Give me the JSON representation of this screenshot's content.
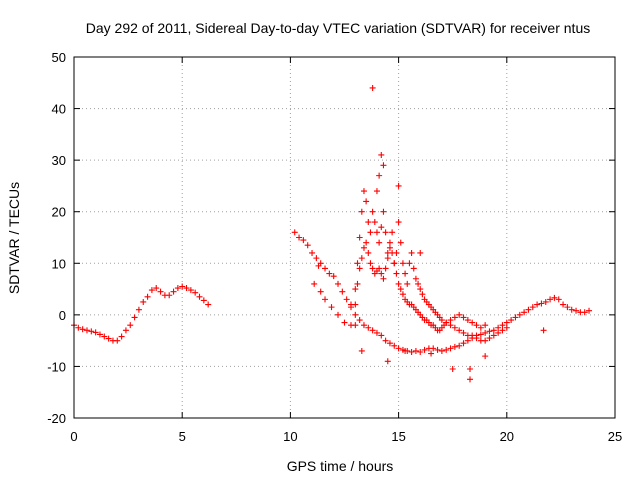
{
  "chart_data": {
    "type": "scatter",
    "title": "Day 292 of 2011, Sidereal Day-to-day VTEC variation (SDTVAR) for receiver ntus",
    "xlabel": "GPS time / hours",
    "ylabel": "SDTVAR / TECUs",
    "xlim": [
      0,
      25
    ],
    "ylim": [
      -20,
      50
    ],
    "xticks": [
      "0",
      "5",
      "10",
      "15",
      "20",
      "25"
    ],
    "yticks": [
      "-20",
      "-10",
      "0",
      "10",
      "20",
      "30",
      "40",
      "50"
    ],
    "grid": true,
    "marker": "+",
    "marker_color": "#ff0000",
    "series": [
      {
        "name": "SDTVAR",
        "x": [
          0.0,
          0.2,
          0.4,
          0.6,
          0.8,
          1.0,
          1.2,
          1.4,
          1.6,
          1.8,
          2.0,
          2.2,
          2.4,
          2.6,
          2.8,
          3.0,
          3.2,
          3.4,
          3.6,
          3.8,
          4.0,
          4.2,
          4.4,
          4.6,
          4.8,
          5.0,
          5.2,
          5.4,
          5.6,
          5.8,
          6.0,
          6.2,
          10.2,
          10.4,
          10.6,
          10.8,
          11.0,
          11.2,
          11.4,
          11.6,
          11.8,
          12.0,
          12.2,
          12.4,
          12.6,
          12.8,
          13.0,
          13.2,
          13.4,
          13.6,
          13.8,
          14.0,
          14.2,
          14.4,
          14.6,
          14.8,
          15.0,
          15.2,
          15.4,
          15.6,
          15.8,
          16.0,
          16.2,
          16.4,
          16.6,
          16.8,
          17.0,
          17.2,
          17.4,
          17.6,
          17.8,
          18.0,
          18.2,
          18.4,
          18.6,
          18.8,
          19.0,
          19.2,
          19.4,
          19.6,
          19.8,
          20.0,
          20.2,
          20.4,
          20.6,
          20.8,
          21.0,
          21.2,
          21.4,
          21.6,
          21.8,
          22.0,
          22.2,
          22.4,
          22.6,
          22.8,
          23.0,
          23.2,
          23.4,
          23.6,
          23.8,
          11.1,
          11.4,
          11.6,
          11.9,
          12.2,
          12.5,
          12.8,
          13.0,
          13.1,
          13.2,
          13.3,
          13.4,
          13.5,
          13.6,
          13.7,
          13.8,
          13.9,
          14.0,
          14.1,
          14.2,
          14.3,
          14.4,
          14.5,
          14.6,
          14.7,
          14.8,
          14.9,
          15.0,
          15.1,
          15.2,
          15.3,
          15.4,
          15.5,
          15.6,
          15.7,
          15.8,
          15.9,
          16.0,
          16.1,
          16.2,
          16.3,
          16.4,
          16.5,
          16.6,
          16.7,
          16.8,
          16.9,
          17.0,
          17.1,
          17.2,
          17.4,
          17.6,
          17.8,
          18.0,
          18.2,
          18.4,
          18.6,
          18.8,
          19.0,
          12.8,
          13.0,
          13.1,
          13.2,
          13.3,
          13.4,
          13.5,
          13.6,
          13.7,
          13.8,
          13.9,
          14.0,
          14.1,
          14.2,
          14.3,
          14.4,
          14.5,
          14.6,
          14.7,
          14.8,
          14.9,
          15.0,
          15.1,
          15.2,
          15.3,
          15.4,
          15.5,
          15.6,
          15.7,
          15.8,
          15.9,
          16.0,
          16.1,
          16.2,
          16.3,
          16.4,
          16.5,
          16.6,
          16.7,
          16.8,
          16.9,
          17.0,
          17.2,
          17.4,
          17.6,
          17.8,
          18.0,
          18.2,
          18.4,
          18.6,
          18.8,
          19.0,
          19.2,
          19.4,
          19.6,
          19.8,
          20.0,
          13.8,
          14.2,
          14.3,
          14.1,
          11.3,
          13.3,
          13.0,
          14.5,
          16.5,
          17.5,
          18.3,
          18.3,
          19.0,
          21.7,
          15.3,
          15.0,
          14.0,
          16.0
        ],
        "y": [
          -2.0,
          -2.5,
          -2.8,
          -3.0,
          -3.2,
          -3.4,
          -3.8,
          -4.2,
          -4.6,
          -5.0,
          -5.0,
          -4.2,
          -3.0,
          -2.0,
          -0.5,
          1.0,
          2.5,
          3.5,
          4.8,
          5.2,
          4.5,
          3.8,
          3.8,
          4.5,
          5.2,
          5.5,
          5.2,
          4.8,
          4.3,
          3.5,
          2.8,
          2.0,
          16.0,
          15.0,
          14.5,
          13.5,
          12.0,
          11.0,
          10.0,
          9.0,
          8.0,
          7.5,
          6.0,
          4.5,
          3.0,
          1.5,
          0.0,
          -1.0,
          -2.0,
          -2.5,
          -3.0,
          -3.5,
          -4.0,
          -5.0,
          -5.5,
          -6.0,
          -6.5,
          -6.8,
          -7.0,
          -7.2,
          -7.0,
          -7.2,
          -6.8,
          -6.5,
          -6.5,
          -6.8,
          -7.0,
          -6.8,
          -6.5,
          -6.2,
          -6.0,
          -5.5,
          -5.0,
          -4.5,
          -4.0,
          -3.8,
          -3.5,
          -3.2,
          -3.0,
          -2.5,
          -2.0,
          -1.5,
          -1.0,
          -0.5,
          0.0,
          0.5,
          1.0,
          1.5,
          2.0,
          2.2,
          2.5,
          3.0,
          3.3,
          3.0,
          2.0,
          1.5,
          1.0,
          0.8,
          0.5,
          0.5,
          0.8,
          6.0,
          4.5,
          3.0,
          1.5,
          0.0,
          -1.5,
          -2.0,
          2.0,
          6.0,
          9.0,
          11.0,
          13.0,
          14.0,
          12.0,
          10.0,
          9.0,
          8.0,
          8.5,
          9.0,
          8.0,
          7.0,
          9.0,
          11.0,
          13.0,
          12.0,
          10.0,
          8.0,
          6.0,
          5.0,
          4.0,
          3.0,
          2.5,
          2.0,
          2.0,
          1.5,
          1.0,
          0.5,
          0.0,
          -0.5,
          -1.0,
          -1.0,
          -1.5,
          -2.0,
          -2.0,
          -2.5,
          -3.0,
          -3.0,
          -2.5,
          -2.0,
          -1.5,
          -1.0,
          -0.5,
          0.0,
          -0.5,
          -1.0,
          -1.5,
          -2.0,
          -2.5,
          -2.0,
          2.0,
          5.0,
          10.0,
          15.0,
          20.0,
          24.0,
          22.0,
          18.0,
          16.0,
          20.0,
          18.0,
          16.0,
          14.0,
          17.0,
          20.0,
          16.0,
          12.0,
          14.0,
          16.0,
          10.0,
          12.0,
          18.0,
          14.0,
          10.0,
          8.0,
          6.0,
          10.0,
          12.0,
          9.0,
          7.0,
          6.0,
          5.0,
          4.0,
          3.0,
          2.5,
          2.0,
          1.5,
          1.0,
          0.5,
          0.0,
          -0.5,
          -1.0,
          -1.5,
          -2.0,
          -2.5,
          -3.0,
          -3.5,
          -4.0,
          -4.0,
          -4.5,
          -5.0,
          -5.0,
          -4.5,
          -4.0,
          -3.5,
          -3.0,
          -2.5,
          44.0,
          31.0,
          29.0,
          27.0,
          9.5,
          -7.0,
          -2.0,
          -9.0,
          -7.5,
          -10.5,
          -10.5,
          -12.5,
          -8.0,
          -3.0,
          -7.0,
          25.0,
          24.0,
          12.0
        ]
      }
    ]
  }
}
